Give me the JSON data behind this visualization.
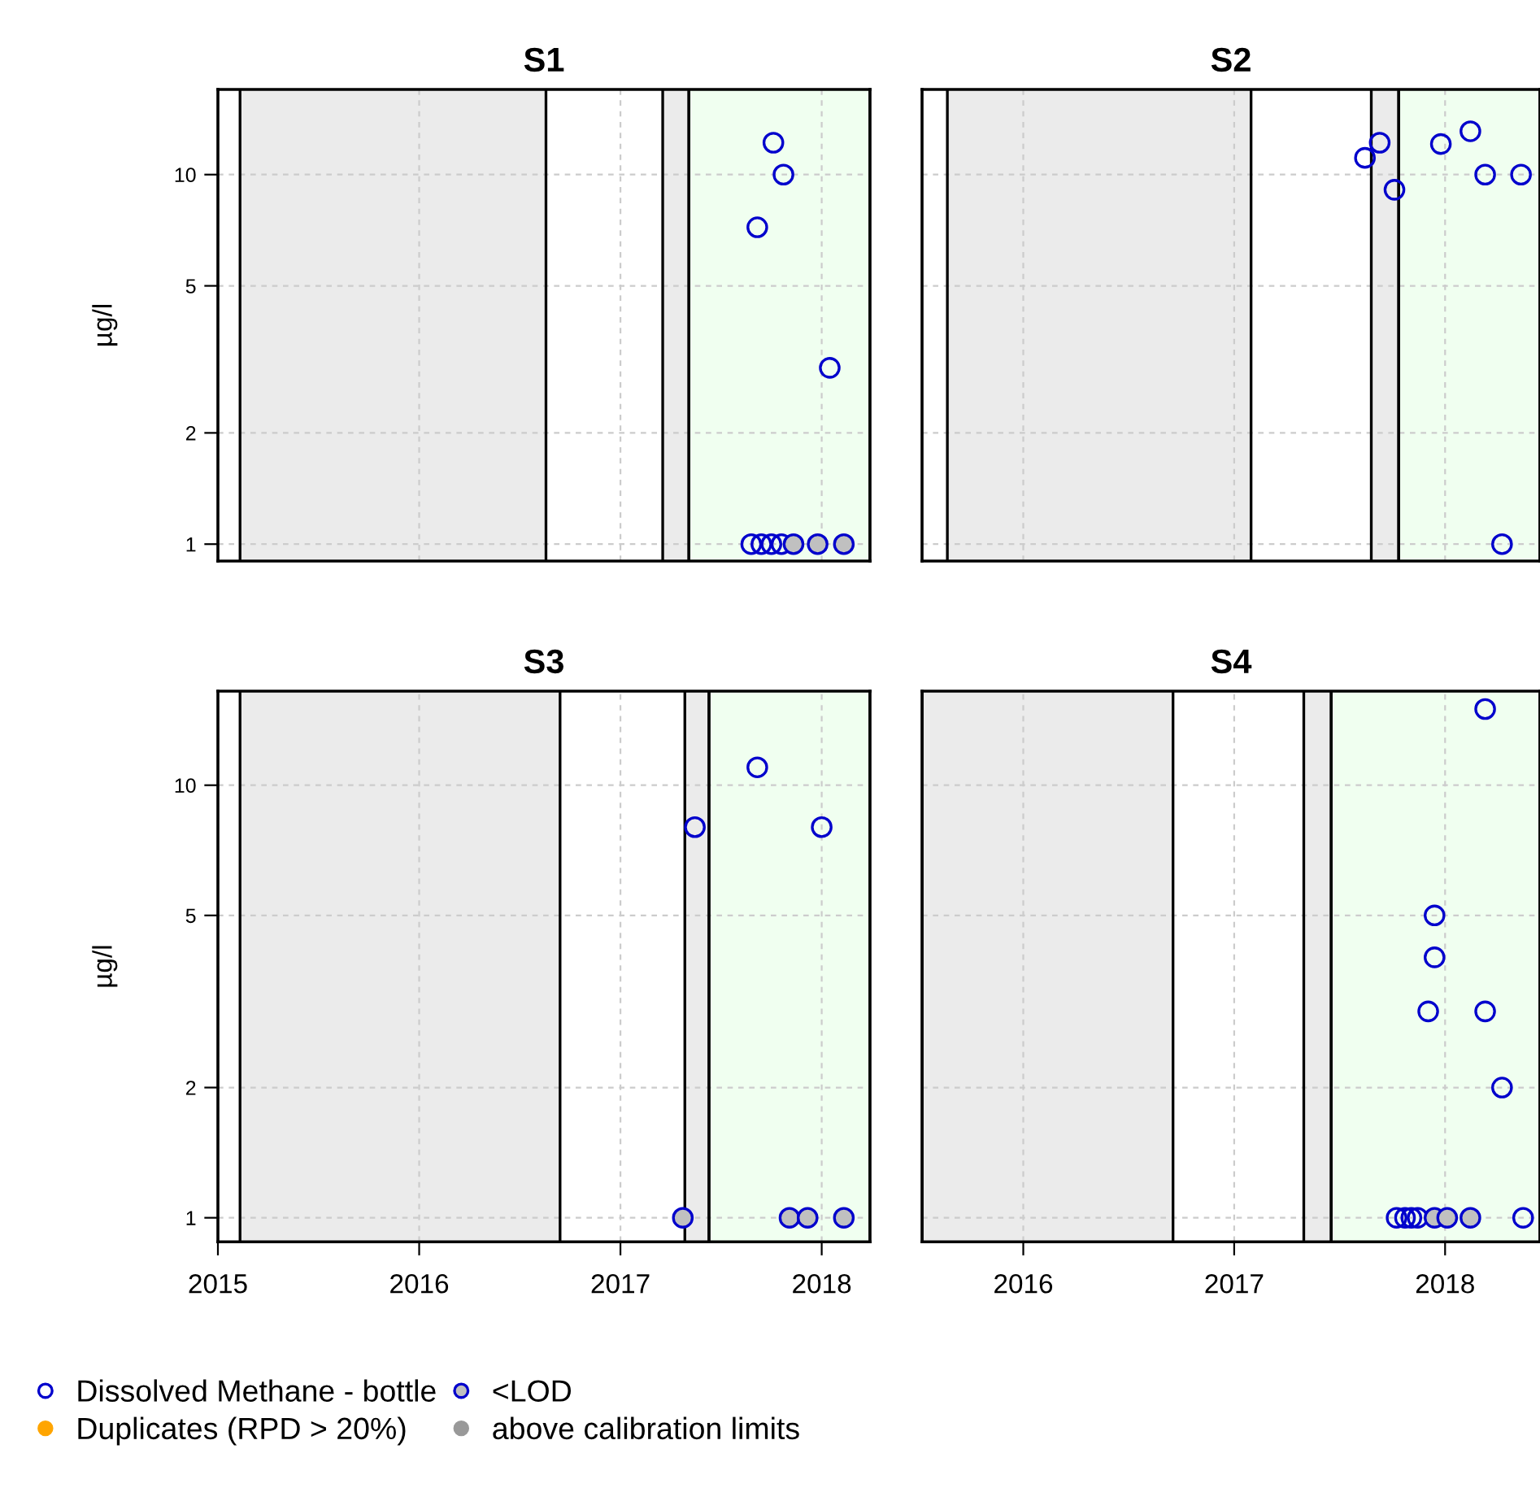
{
  "chart_data": [
    {
      "type": "scatter",
      "title": "S1",
      "ylabel": "µg/l",
      "log": "y",
      "xlim": [
        2015.0,
        2018.24
      ],
      "xticks": [
        {
          "value": 2015,
          "label": null
        },
        {
          "value": 2016,
          "label": null
        },
        {
          "value": 2017,
          "label": null
        },
        {
          "value": 2018,
          "label": null
        }
      ],
      "ylim": [
        0.9,
        17
      ],
      "yticks": [
        1,
        2,
        5,
        10
      ],
      "grid": true,
      "tick_labels": "y",
      "marker": "circle",
      "legend": false,
      "bands": [
        {
          "axis": "x",
          "from": 2015.11,
          "to": 2016.63,
          "color": "#ebebeb"
        },
        {
          "axis": "x",
          "from": 2017.21,
          "to": 2017.34,
          "color": "#ebebeb"
        },
        {
          "axis": "x",
          "from": 2017.34,
          "to": 2018.24,
          "color": "#f0fff0"
        }
      ],
      "series": [
        {
          "color": "#0000cc",
          "x": [
            2017.76,
            2017.81,
            2017.68,
            2018.04,
            2017.65,
            2017.7,
            2017.75,
            2017.8
          ],
          "values": [
            12.2,
            10,
            7.2,
            3,
            1,
            1,
            1,
            1
          ]
        },
        {
          "color": "#c0c0c0",
          "x": [
            2017.86,
            2017.98,
            2018.11
          ],
          "values": [
            1,
            1,
            1
          ]
        }
      ]
    },
    {
      "type": "scatter",
      "title": "S2",
      "log": "y",
      "xlim": [
        2015.52,
        2018.45
      ],
      "xticks": [
        {
          "value": 2016,
          "label": null
        },
        {
          "value": 2017,
          "label": null
        },
        {
          "value": 2018,
          "label": null
        }
      ],
      "ylim": [
        0.9,
        17
      ],
      "yticks": [
        {
          "value": 1,
          "label": null
        },
        {
          "value": 2,
          "label": null
        },
        {
          "value": 5,
          "label": null
        },
        {
          "value": 10,
          "label": null
        }
      ],
      "grid": true,
      "tick_labels": false,
      "marker": "circle",
      "legend": false,
      "bands": [
        {
          "axis": "x",
          "from": 2015.64,
          "to": 2017.08,
          "color": "#ebebeb"
        },
        {
          "axis": "x",
          "from": 2017.65,
          "to": 2017.78,
          "color": "#ebebeb"
        },
        {
          "axis": "x",
          "from": 2017.78,
          "to": 2018.45,
          "color": "#f0fff0"
        }
      ],
      "series": [
        {
          "color": "#0000cc",
          "x": [
            2017.62,
            2017.69,
            2017.76,
            2017.98,
            2018.12,
            2018.19,
            2018.36,
            2018.27
          ],
          "values": [
            11.1,
            12.2,
            9.1,
            12.1,
            13.1,
            10,
            10,
            1
          ]
        }
      ]
    },
    {
      "type": "scatter",
      "title": "S3",
      "ylabel": "µg/l",
      "log": "y",
      "xlim": [
        2015.0,
        2018.24
      ],
      "xticks": [
        2015,
        2016,
        2017,
        2018
      ],
      "ylim": [
        0.88,
        16.5
      ],
      "yticks": [
        1,
        2,
        5,
        10
      ],
      "grid": true,
      "marker": "circle",
      "legend": "bottom",
      "bands": [
        {
          "axis": "x",
          "from": 2015.11,
          "to": 2016.7,
          "color": "#ebebeb"
        },
        {
          "axis": "x",
          "from": 2017.32,
          "to": 2017.44,
          "color": "#ebebeb"
        },
        {
          "axis": "x",
          "from": 2017.44,
          "to": 2018.24,
          "color": "#f0fff0"
        }
      ],
      "series": [
        {
          "name": "Dissolved Methane - bottle",
          "color": "#0000cc",
          "x": [
            2017.68,
            2017.37,
            2018.0
          ],
          "values": [
            11,
            8,
            8
          ]
        },
        {
          "name": "Duplicates (RPD > 20%)",
          "color": "#ffa500"
        },
        {
          "name": "<LOD",
          "color": "#c0c0c0",
          "x": [
            2017.31,
            2017.84,
            2017.93,
            2018.11
          ],
          "values": [
            1,
            1,
            1,
            1
          ]
        },
        {
          "name": "above calibration limits",
          "color": "#999999"
        }
      ]
    },
    {
      "type": "scatter",
      "title": "S4",
      "log": "y",
      "xlim": [
        2015.52,
        2018.45
      ],
      "xticks": [
        2016,
        2017,
        2018
      ],
      "ylim": [
        0.88,
        16.5
      ],
      "yticks": [
        {
          "value": 1,
          "label": null
        },
        {
          "value": 2,
          "label": null
        },
        {
          "value": 5,
          "label": null
        },
        {
          "value": 10,
          "label": null
        }
      ],
      "grid": true,
      "tick_labels": "x",
      "marker": "circle",
      "legend": false,
      "bands": [
        {
          "axis": "x",
          "from": 2015.52,
          "to": 2016.71,
          "color": "#ebebeb"
        },
        {
          "axis": "x",
          "from": 2017.33,
          "to": 2017.46,
          "color": "#ebebeb"
        },
        {
          "axis": "x",
          "from": 2017.46,
          "to": 2018.45,
          "color": "#f0fff0"
        }
      ],
      "series": [
        {
          "color": "#0000cc",
          "x": [
            2018.19,
            2017.95,
            2017.95,
            2017.92,
            2018.19,
            2018.27,
            2018.37,
            2017.77,
            2017.81,
            2017.84,
            2017.87
          ],
          "values": [
            15,
            5,
            4,
            3,
            3,
            2,
            1,
            1,
            1,
            1,
            1
          ]
        },
        {
          "color": "#c0c0c0",
          "x": [
            2017.95,
            2018.01,
            2018.12
          ],
          "values": [
            1,
            1,
            1
          ]
        }
      ]
    }
  ]
}
